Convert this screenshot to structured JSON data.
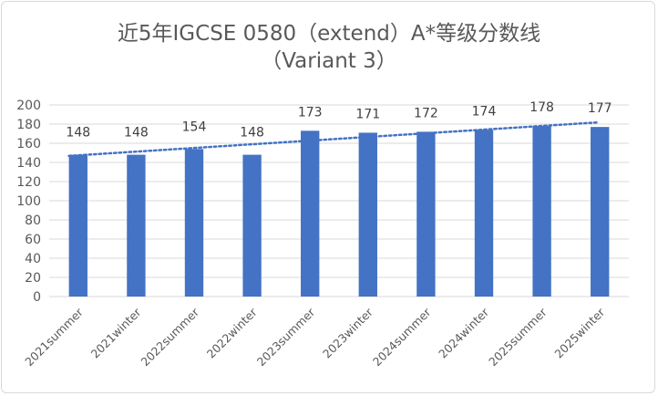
{
  "chart_data": {
    "type": "bar",
    "title": "近5年IGCSE 0580（extend）A*等级分数线",
    "subtitle": "（Variant 3）",
    "categories": [
      "2021summer",
      "2021winter",
      "2022summer",
      "2022winter",
      "2023summer",
      "2023winter",
      "2024summer",
      "2024winter",
      "2025summer",
      "2025winter"
    ],
    "values": [
      148,
      148,
      154,
      148,
      173,
      171,
      172,
      174,
      178,
      177
    ],
    "ylim": [
      0,
      200
    ],
    "yticks": [
      0,
      20,
      40,
      60,
      80,
      100,
      120,
      140,
      160,
      180,
      200
    ],
    "grid": true,
    "trendline": "linear, dotted",
    "colors": {
      "bar": "#4472c4",
      "trend": "#4472c4",
      "grid": "#d9d9d9"
    }
  }
}
